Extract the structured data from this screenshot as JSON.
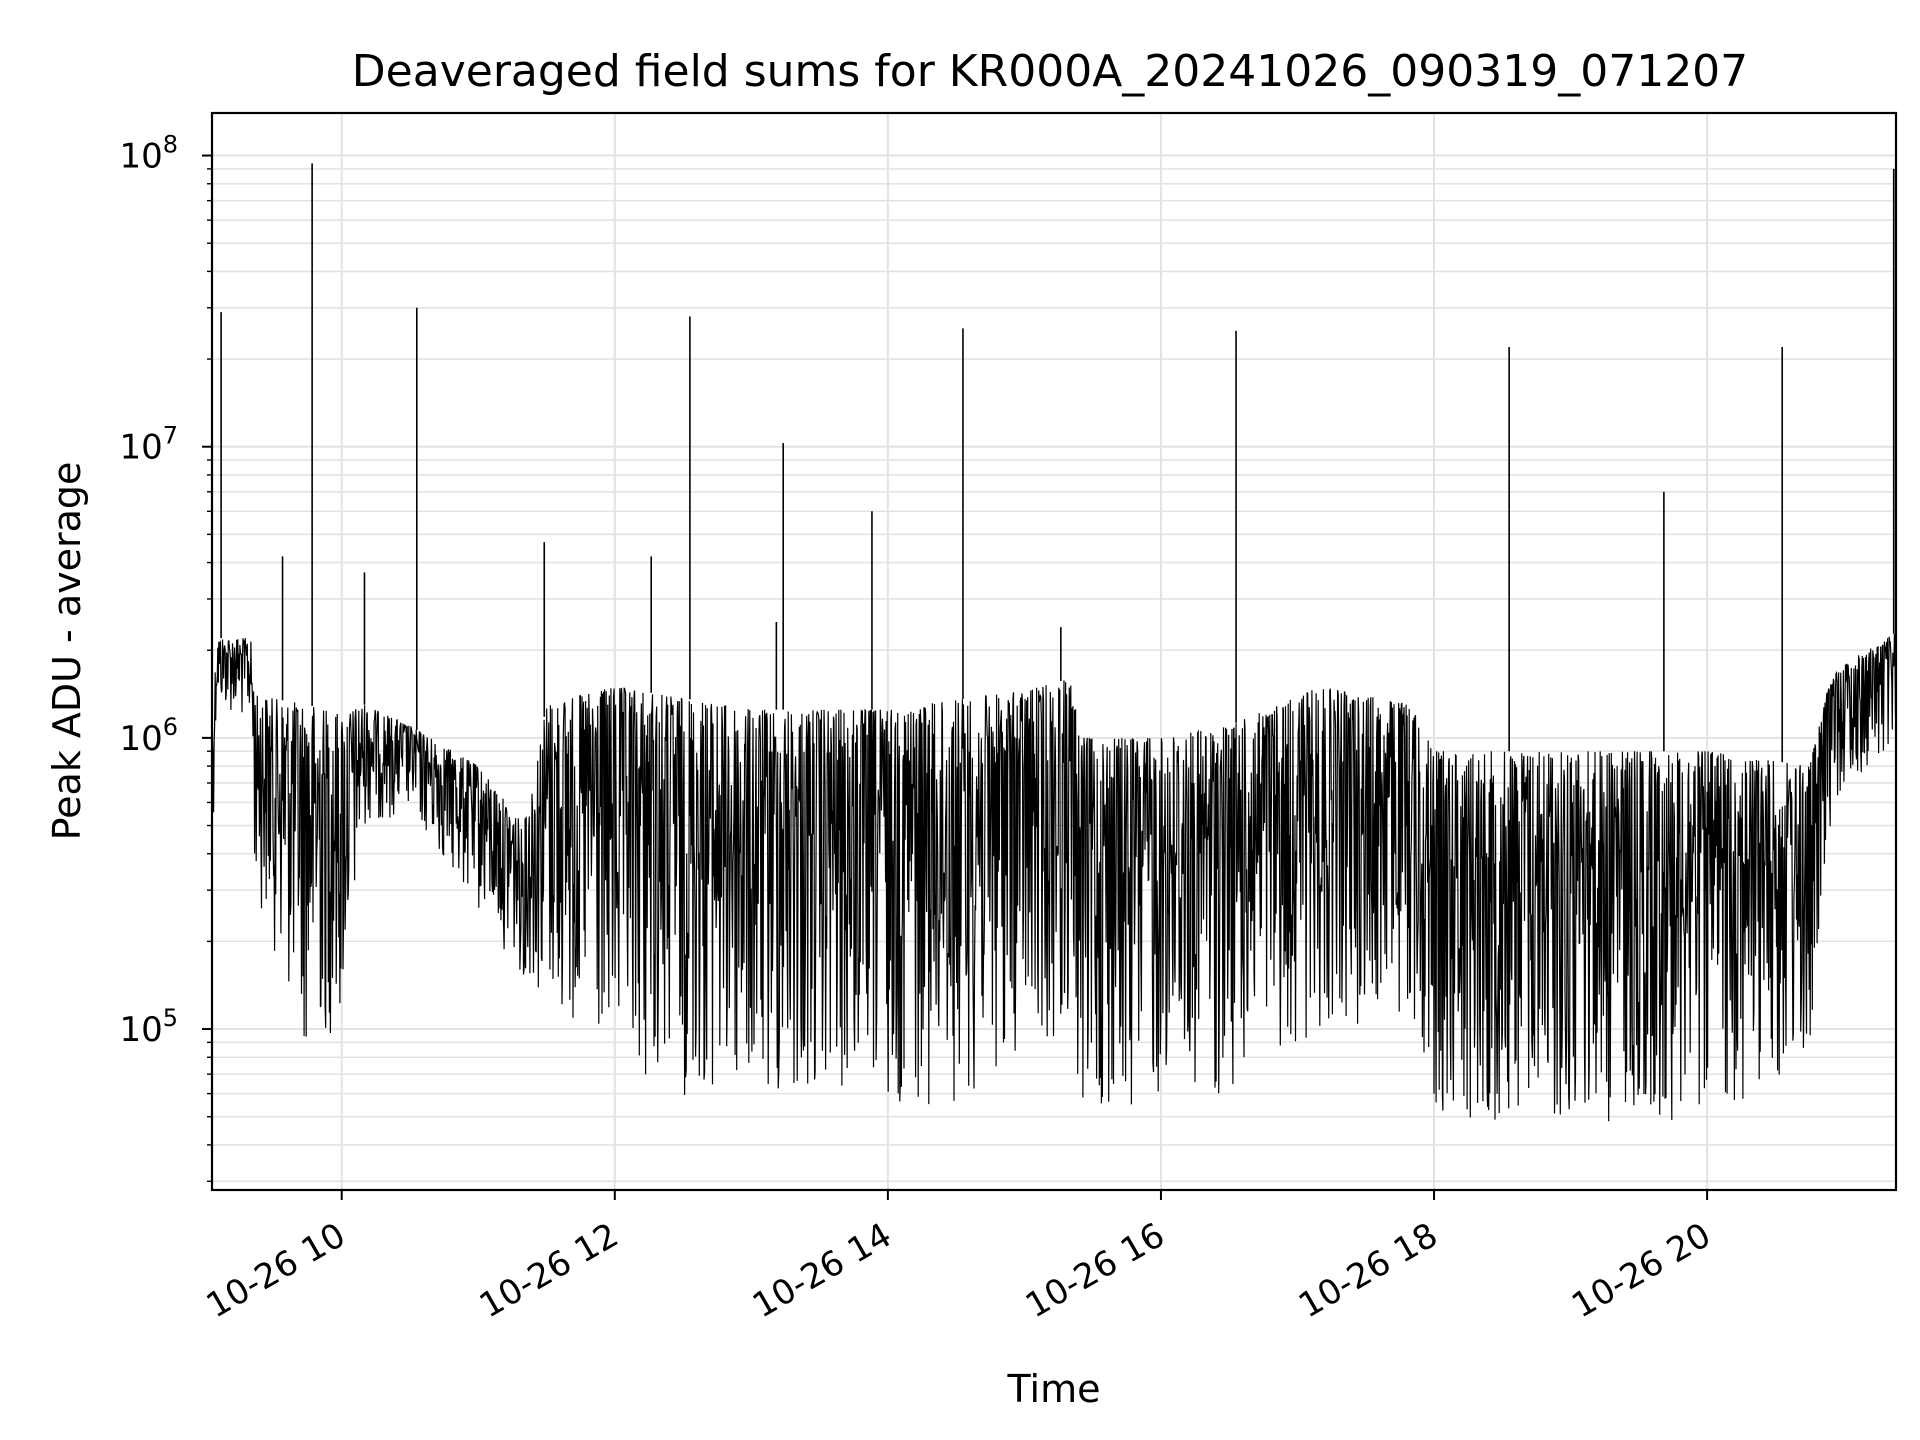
{
  "chart_data": {
    "type": "line",
    "title": "Deaveraged field sums for KR000A_20241026_090319_071207",
    "xlabel": "Time",
    "ylabel": "Peak ADU - average",
    "x_axis_kind": "datetime",
    "xlim": [
      "2024-10-26 09:03",
      "2024-10-26 21:23"
    ],
    "ylim": [
      28000,
      140000000
    ],
    "yscale": "log",
    "grid": true,
    "legend": "none",
    "line_color": "#000000",
    "grid_color": "#e3e3e3",
    "x_ticks": [
      {
        "value": "2024-10-26 10:00",
        "label": "10-26 10"
      },
      {
        "value": "2024-10-26 12:00",
        "label": "10-26 12"
      },
      {
        "value": "2024-10-26 14:00",
        "label": "10-26 14"
      },
      {
        "value": "2024-10-26 16:00",
        "label": "10-26 16"
      },
      {
        "value": "2024-10-26 18:00",
        "label": "10-26 18"
      },
      {
        "value": "2024-10-26 20:00",
        "label": "10-26 20"
      }
    ],
    "y_ticks": [
      {
        "value": 100000,
        "base": "10",
        "exp": "5"
      },
      {
        "value": 1000000,
        "base": "10",
        "exp": "6"
      },
      {
        "value": 10000000,
        "base": "10",
        "exp": "7"
      },
      {
        "value": 100000000,
        "base": "10",
        "exp": "8"
      }
    ],
    "baseline": [
      {
        "t": "2024-10-26 09:03",
        "hi": 1000000,
        "lo": 350000
      },
      {
        "t": "2024-10-26 09:05",
        "hi": 2200000,
        "lo": 1300000
      },
      {
        "t": "2024-10-26 09:20",
        "hi": 2200000,
        "lo": 1100000
      },
      {
        "t": "2024-10-26 09:22",
        "hi": 1400000,
        "lo": 300000
      },
      {
        "t": "2024-10-26 09:45",
        "hi": 1300000,
        "lo": 80000
      },
      {
        "t": "2024-10-26 10:00",
        "hi": 1200000,
        "lo": 100000
      },
      {
        "t": "2024-10-26 10:10",
        "hi": 1300000,
        "lo": 500000
      },
      {
        "t": "2024-10-26 10:30",
        "hi": 1100000,
        "lo": 550000
      },
      {
        "t": "2024-10-26 11:00",
        "hi": 800000,
        "lo": 250000
      },
      {
        "t": "2024-10-26 11:20",
        "hi": 500000,
        "lo": 150000
      },
      {
        "t": "2024-10-26 11:30",
        "hi": 1300000,
        "lo": 120000
      },
      {
        "t": "2024-10-26 12:00",
        "hi": 1500000,
        "lo": 65000
      },
      {
        "t": "2024-10-26 13:00",
        "hi": 1250000,
        "lo": 52000
      },
      {
        "t": "2024-10-26 14:00",
        "hi": 1250000,
        "lo": 55000
      },
      {
        "t": "2024-10-26 14:30",
        "hi": 1350000,
        "lo": 55000
      },
      {
        "t": "2024-10-26 15:00",
        "hi": 1450000,
        "lo": 80000
      },
      {
        "t": "2024-10-26 15:20",
        "hi": 1600000,
        "lo": 100000
      },
      {
        "t": "2024-10-26 15:25",
        "hi": 1000000,
        "lo": 45000
      },
      {
        "t": "2024-10-26 16:00",
        "hi": 1000000,
        "lo": 55000
      },
      {
        "t": "2024-10-26 16:30",
        "hi": 1100000,
        "lo": 60000
      },
      {
        "t": "2024-10-26 17:10",
        "hi": 1500000,
        "lo": 100000
      },
      {
        "t": "2024-10-26 17:50",
        "hi": 1300000,
        "lo": 110000
      },
      {
        "t": "2024-10-26 18:00",
        "hi": 900000,
        "lo": 50000
      },
      {
        "t": "2024-10-26 19:00",
        "hi": 900000,
        "lo": 45000
      },
      {
        "t": "2024-10-26 20:00",
        "hi": 900000,
        "lo": 50000
      },
      {
        "t": "2024-10-26 20:45",
        "hi": 800000,
        "lo": 70000
      },
      {
        "t": "2024-10-26 20:55",
        "hi": 1700000,
        "lo": 600000
      },
      {
        "t": "2024-10-26 21:23",
        "hi": 2300000,
        "lo": 900000
      }
    ],
    "spikes": [
      {
        "t": "2024-10-26 09:07",
        "y": 29000000
      },
      {
        "t": "2024-10-26 09:34",
        "y": 4200000
      },
      {
        "t": "2024-10-26 09:47",
        "y": 94000000
      },
      {
        "t": "2024-10-26 10:10",
        "y": 3700000
      },
      {
        "t": "2024-10-26 10:33",
        "y": 30000000
      },
      {
        "t": "2024-10-26 11:29",
        "y": 4700000
      },
      {
        "t": "2024-10-26 12:16",
        "y": 4200000
      },
      {
        "t": "2024-10-26 12:33",
        "y": 28000000
      },
      {
        "t": "2024-10-26 13:11",
        "y": 2500000
      },
      {
        "t": "2024-10-26 13:14",
        "y": 10300000
      },
      {
        "t": "2024-10-26 13:53",
        "y": 6000000
      },
      {
        "t": "2024-10-26 14:33",
        "y": 25500000
      },
      {
        "t": "2024-10-26 15:16",
        "y": 2400000
      },
      {
        "t": "2024-10-26 16:33",
        "y": 25000000
      },
      {
        "t": "2024-10-26 18:33",
        "y": 22000000
      },
      {
        "t": "2024-10-26 19:41",
        "y": 7000000
      },
      {
        "t": "2024-10-26 20:33",
        "y": 22000000
      },
      {
        "t": "2024-10-26 21:22",
        "y": 90000000
      }
    ]
  }
}
